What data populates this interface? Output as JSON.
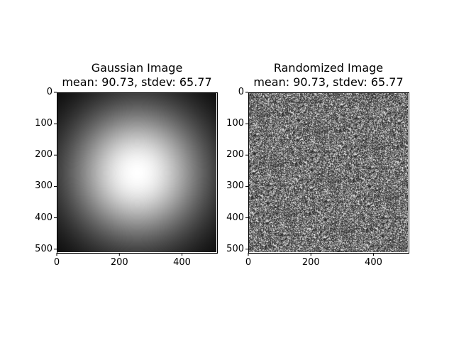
{
  "chart_data": [
    {
      "type": "heatmap",
      "colormap": "gray",
      "title_line1": "Gaussian Image",
      "title_line2": "mean: 90.73, stdev: 65.77",
      "pattern": "2D gaussian blob, bright center near (256,256), dark corners",
      "xlim": [
        0,
        512
      ],
      "ylim": [
        512,
        0
      ],
      "xticks": [
        0,
        200,
        400
      ],
      "yticks": [
        0,
        100,
        200,
        300,
        400,
        500
      ],
      "xtick_labels": [
        "0",
        "200",
        "400"
      ],
      "ytick_labels": [
        "0",
        "100",
        "200",
        "300",
        "400",
        "500"
      ]
    },
    {
      "type": "heatmap",
      "colormap": "gray",
      "title_line1": "Randomized Image",
      "title_line2": "mean: 90.73, stdev: 65.77",
      "pattern": "random noise (pixels of gaussian image shuffled)",
      "xlim": [
        0,
        512
      ],
      "ylim": [
        512,
        0
      ],
      "xticks": [
        0,
        200,
        400
      ],
      "yticks": [
        0,
        100,
        200,
        300,
        400,
        500
      ],
      "xtick_labels": [
        "0",
        "200",
        "400"
      ],
      "ytick_labels": [
        "0",
        "100",
        "200",
        "300",
        "400",
        "500"
      ]
    }
  ]
}
